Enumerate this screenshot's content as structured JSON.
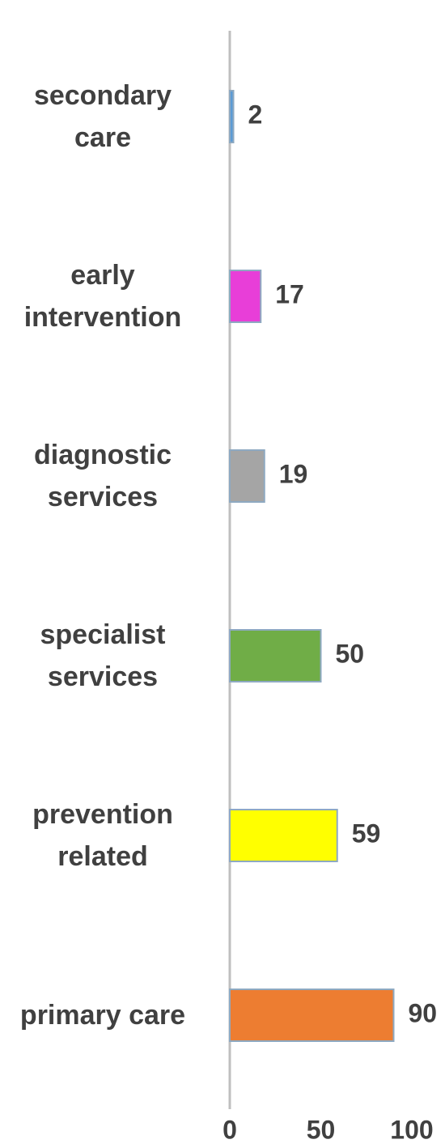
{
  "chart_data": {
    "type": "barh",
    "categories": [
      "secondary care",
      "early intervention",
      "diagnostic services",
      "specialist services",
      "prevention related",
      "primary care"
    ],
    "values": [
      2,
      17,
      19,
      50,
      59,
      90
    ],
    "colors": [
      "#5b9bd5",
      "#e83ed8",
      "#a5a5a5",
      "#70ad47",
      "#ffff00",
      "#ed7d31"
    ],
    "xlim": [
      0,
      100
    ],
    "xticks": [
      0,
      50,
      100
    ],
    "grid": false
  }
}
